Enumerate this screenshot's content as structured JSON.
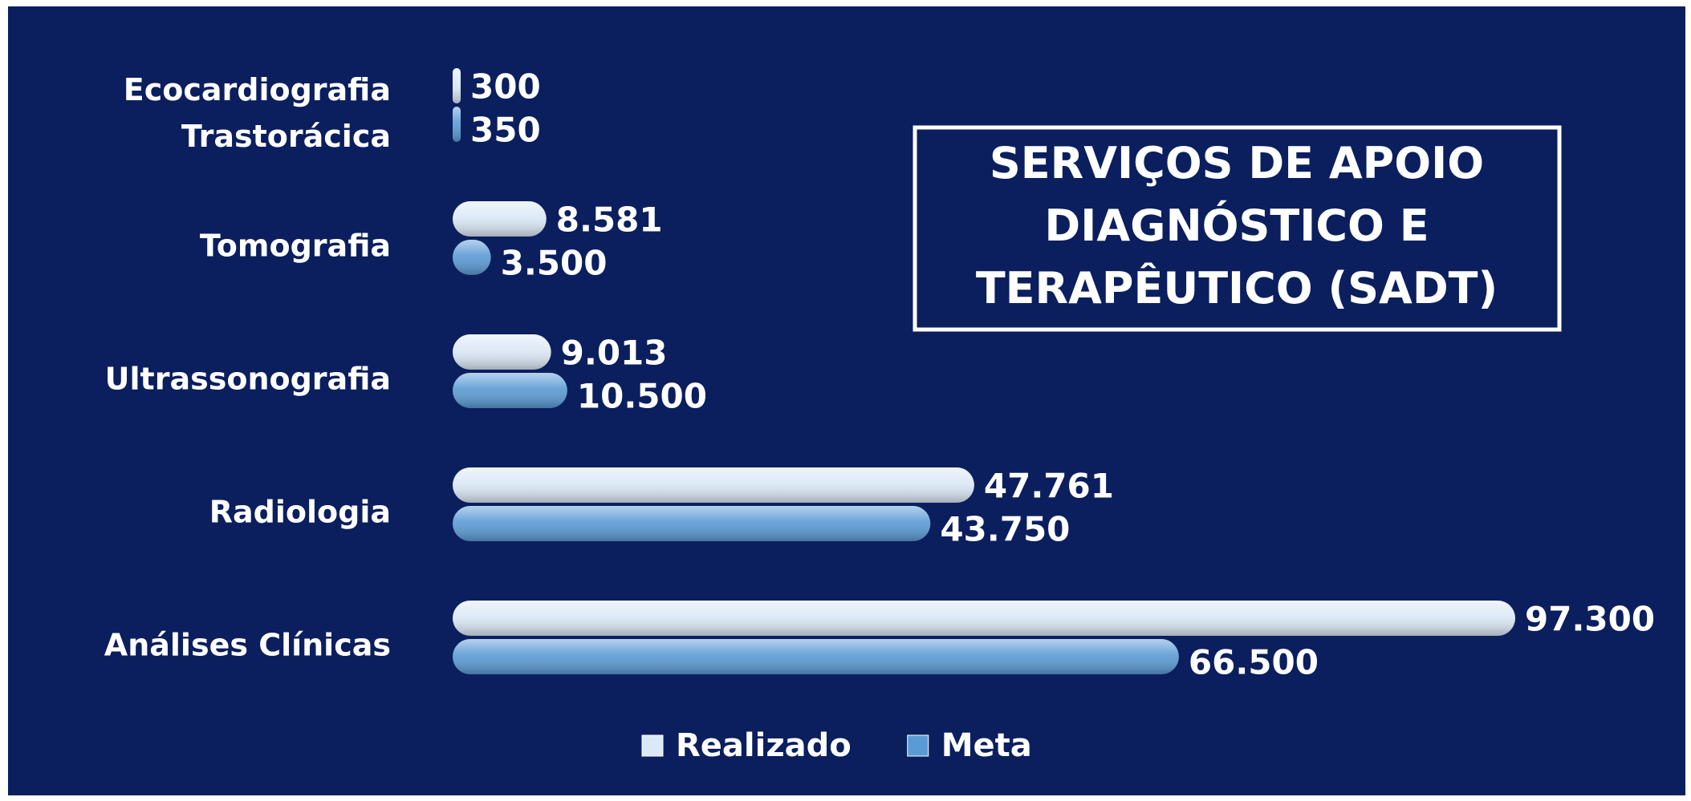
{
  "chart_data": {
    "type": "barh",
    "title": "SERVIÇOS DE APOIO DIAGNÓSTICO E TERAPÊUTICO (SADT)",
    "categories": [
      "Ecocardiografia Trastorácica",
      "Tomografia",
      "Ultrassonografia",
      "Radiologia",
      "Análises Clínicas"
    ],
    "series": [
      {
        "name": "Realizado",
        "color": "#dbe8f6",
        "values": [
          300,
          8581,
          9013,
          47761,
          97300
        ],
        "value_labels": [
          "300",
          "8.581",
          "9.013",
          "47.761",
          "97.300"
        ]
      },
      {
        "name": "Meta",
        "color": "#5b9bd5",
        "values": [
          350,
          3500,
          10500,
          43750,
          66500
        ],
        "value_labels": [
          "350",
          "3.500",
          "10.500",
          "43.750",
          "66.500"
        ]
      }
    ],
    "legend": "bottom"
  }
}
